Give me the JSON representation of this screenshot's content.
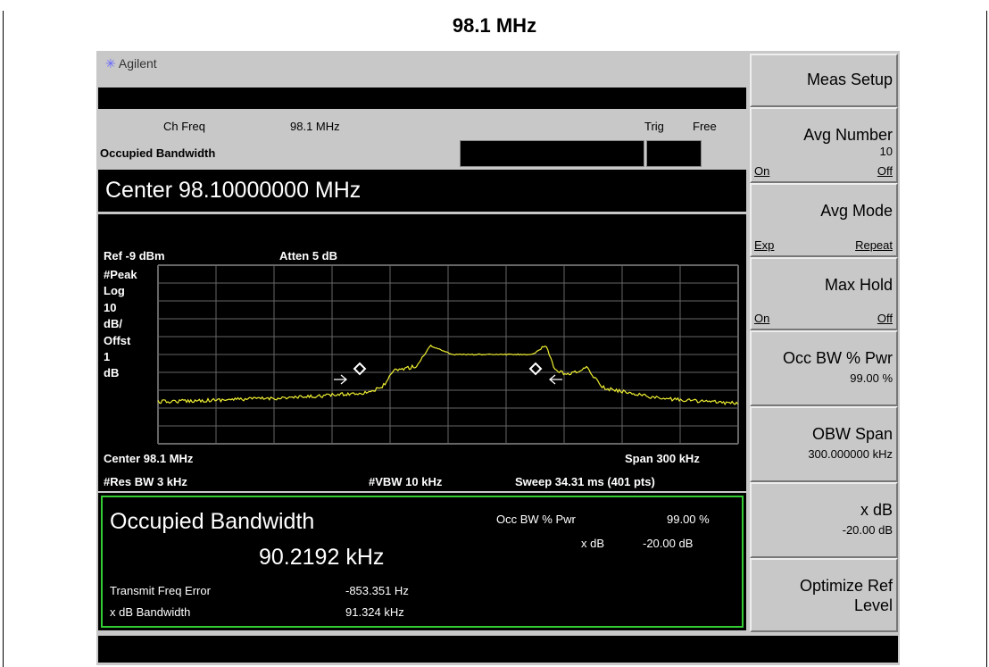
{
  "title": "98.1 MHz",
  "header": {
    "brand": "Agilent",
    "ch_freq_label": "Ch Freq",
    "ch_freq": "98.1 MHz",
    "trig_label": "Trig",
    "trig": "Free",
    "mode": "Occupied Bandwidth",
    "center": "Center 98.10000000 MHz"
  },
  "graph": {
    "ref": "Ref -9 dBm",
    "atten": "Atten 5 dB",
    "scale_labels": [
      "#Peak",
      "Log",
      "10",
      "dB/",
      "Offst",
      "1",
      "dB"
    ],
    "center": "Center 98.1 MHz",
    "span": "Span 300 kHz",
    "res_bw": "#Res BW 3 kHz",
    "vbw": "#VBW 10 kHz",
    "sweep": "Sweep 34.31 ms (401 pts)"
  },
  "results": {
    "title": "Occupied Bandwidth",
    "value": "90.2192 kHz",
    "occ_bw_label": "Occ BW % Pwr",
    "occ_bw": "99.00 %",
    "xdb_label": "x dB",
    "xdb": "-20.00 dB",
    "freq_error_label": "Transmit Freq Error",
    "freq_error": "-853.351 Hz",
    "xdb_bw_label": "x dB Bandwidth",
    "xdb_bw": "91.324 kHz"
  },
  "softkeys": [
    {
      "label": "Meas Setup"
    },
    {
      "label": "Avg Number",
      "value": "10",
      "left": "On",
      "right": "Off"
    },
    {
      "label": "Avg Mode",
      "left": "Exp",
      "right": "Repeat"
    },
    {
      "label": "Max Hold",
      "left": "On",
      "right": "Off"
    },
    {
      "label": "Occ BW % Pwr",
      "value": "99.00 %"
    },
    {
      "label": "OBW Span",
      "value": "300.000000 kHz"
    },
    {
      "label": "x dB",
      "value": "-20.00 dB"
    },
    {
      "label": "Optimize Ref Level"
    }
  ]
}
